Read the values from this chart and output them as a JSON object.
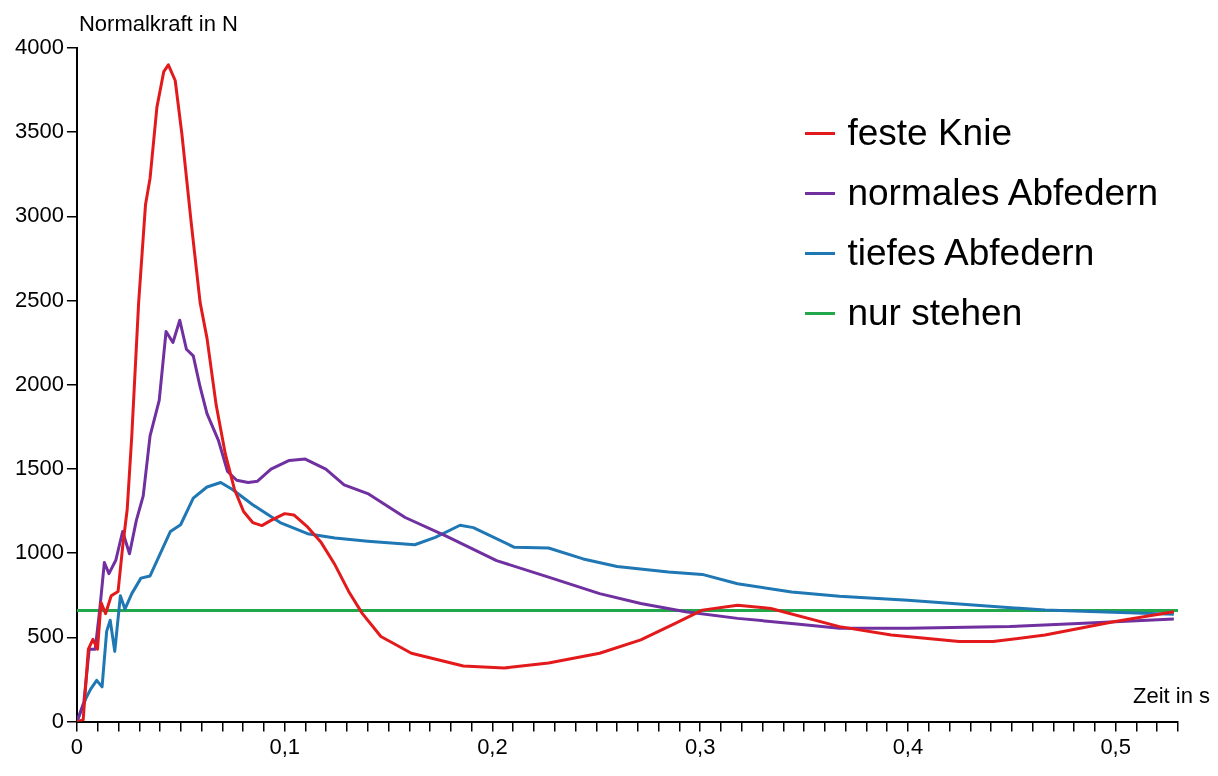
{
  "chart_data": {
    "type": "line",
    "xlabel": "Zeit in s",
    "ylabel": "Normalkraft in N",
    "xlim": [
      0,
      0.53
    ],
    "ylim": [
      0,
      4000
    ],
    "xticks": [
      0,
      {
        "value": 0.01,
        "label": null
      },
      {
        "value": 0.02,
        "label": null
      },
      {
        "value": 0.03,
        "label": null
      },
      {
        "value": 0.04,
        "label": null
      },
      {
        "value": 0.05,
        "label": null
      },
      {
        "value": 0.06,
        "label": null
      },
      {
        "value": 0.07,
        "label": null
      },
      {
        "value": 0.08,
        "label": null
      },
      {
        "value": 0.09,
        "label": null
      },
      {
        "value": 0.1,
        "label": "0,1"
      },
      {
        "value": 0.11,
        "label": null
      },
      {
        "value": 0.12,
        "label": null
      },
      {
        "value": 0.13,
        "label": null
      },
      {
        "value": 0.14,
        "label": null
      },
      {
        "value": 0.15,
        "label": null
      },
      {
        "value": 0.16,
        "label": null
      },
      {
        "value": 0.17,
        "label": null
      },
      {
        "value": 0.18,
        "label": null
      },
      {
        "value": 0.19,
        "label": null
      },
      {
        "value": 0.2,
        "label": "0,2"
      },
      {
        "value": 0.21,
        "label": null
      },
      {
        "value": 0.22,
        "label": null
      },
      {
        "value": 0.23,
        "label": null
      },
      {
        "value": 0.24,
        "label": null
      },
      {
        "value": 0.25,
        "label": null
      },
      {
        "value": 0.26,
        "label": null
      },
      {
        "value": 0.27,
        "label": null
      },
      {
        "value": 0.28,
        "label": null
      },
      {
        "value": 0.29,
        "label": null
      },
      {
        "value": 0.3,
        "label": "0,3"
      },
      {
        "value": 0.31,
        "label": null
      },
      {
        "value": 0.32,
        "label": null
      },
      {
        "value": 0.33,
        "label": null
      },
      {
        "value": 0.34,
        "label": null
      },
      {
        "value": 0.35,
        "label": null
      },
      {
        "value": 0.36,
        "label": null
      },
      {
        "value": 0.37,
        "label": null
      },
      {
        "value": 0.38,
        "label": null
      },
      {
        "value": 0.39,
        "label": null
      },
      {
        "value": 0.4,
        "label": "0,4"
      },
      {
        "value": 0.41,
        "label": null
      },
      {
        "value": 0.42,
        "label": null
      },
      {
        "value": 0.43,
        "label": null
      },
      {
        "value": 0.44,
        "label": null
      },
      {
        "value": 0.45,
        "label": null
      },
      {
        "value": 0.46,
        "label": null
      },
      {
        "value": 0.47,
        "label": null
      },
      {
        "value": 0.48,
        "label": null
      },
      {
        "value": 0.49,
        "label": null
      },
      {
        "value": 0.5,
        "label": "0,5"
      },
      {
        "value": 0.51,
        "label": null
      },
      {
        "value": 0.52,
        "label": null
      },
      {
        "value": 0.53,
        "label": null
      }
    ],
    "yticks": [
      0,
      500,
      1000,
      1500,
      2000,
      2500,
      3000,
      3500,
      4000
    ],
    "grid": false,
    "legend": "top right",
    "marker": "none",
    "line_style": "solid",
    "series": [
      {
        "name": "feste Knie",
        "color": "#e31a1c",
        "x": [
          0,
          0.003,
          0.0055,
          0.0077,
          0.0099,
          0.0116,
          0.0138,
          0.0165,
          0.0198,
          0.022,
          0.0242,
          0.0264,
          0.0297,
          0.033,
          0.0352,
          0.0385,
          0.0418,
          0.044,
          0.0473,
          0.0505,
          0.055,
          0.0593,
          0.0626,
          0.067,
          0.0714,
          0.0758,
          0.0802,
          0.0846,
          0.089,
          0.0934,
          0.1,
          0.1044,
          0.111,
          0.1176,
          0.1242,
          0.1308,
          0.1374,
          0.1463,
          0.161,
          0.186,
          0.2056,
          0.227,
          0.2516,
          0.2714,
          0.288,
          0.301,
          0.318,
          0.334,
          0.367,
          0.392,
          0.4246,
          0.441,
          0.466,
          0.499,
          0.528
        ],
        "values": [
          0,
          10,
          430,
          488,
          430,
          707,
          641,
          747,
          773,
          1037,
          1261,
          1697,
          2488,
          3069,
          3227,
          3649,
          3860,
          3900,
          3807,
          3491,
          2963,
          2488,
          2277,
          1881,
          1591,
          1380,
          1248,
          1182,
          1164,
          1195,
          1235,
          1227,
          1156,
          1063,
          931,
          773,
          641,
          505,
          406,
          330,
          318,
          348,
          406,
          485,
          583,
          662,
          691,
          672,
          564,
          514,
          475,
          475,
          514,
          593,
          652
        ]
      },
      {
        "name": "normales Abfedern",
        "color": "#7030a0",
        "x": [
          0,
          0.0033,
          0.0059,
          0.0088,
          0.011,
          0.0132,
          0.0154,
          0.0187,
          0.022,
          0.0253,
          0.0286,
          0.0319,
          0.0352,
          0.0396,
          0.0429,
          0.0462,
          0.0495,
          0.0527,
          0.056,
          0.0593,
          0.0626,
          0.0681,
          0.0725,
          0.0769,
          0.0824,
          0.0868,
          0.0934,
          0.1022,
          0.1099,
          0.1198,
          0.1286,
          0.14,
          0.158,
          0.1775,
          0.202,
          0.227,
          0.2516,
          0.2714,
          0.293,
          0.318,
          0.344,
          0.367,
          0.4,
          0.449,
          0.482,
          0.528
        ],
        "values": [
          0,
          113,
          430,
          430,
          668,
          945,
          879,
          958,
          1129,
          997,
          1195,
          1340,
          1697,
          1908,
          2317,
          2251,
          2383,
          2211,
          2172,
          1987,
          1829,
          1670,
          1485,
          1433,
          1420,
          1427,
          1499,
          1551,
          1559,
          1499,
          1406,
          1354,
          1212,
          1103,
          956,
          858,
          760,
          701,
          652,
          613,
          583,
          554,
          554,
          564,
          583,
          609
        ]
      },
      {
        "name": "tiefes Abfedern",
        "color": "#1f77b4",
        "x": [
          0,
          0.0044,
          0.0066,
          0.0095,
          0.0121,
          0.0143,
          0.016,
          0.0182,
          0.0209,
          0.0231,
          0.0264,
          0.0308,
          0.0352,
          0.0396,
          0.045,
          0.0499,
          0.056,
          0.0626,
          0.0692,
          0.0747,
          0.0846,
          0.0978,
          0.111,
          0.1242,
          0.14,
          0.1626,
          0.1725,
          0.1844,
          0.1908,
          0.2106,
          0.227,
          0.2437,
          0.26,
          0.2847,
          0.301,
          0.318,
          0.344,
          0.367,
          0.4,
          0.433,
          0.466,
          0.528
        ],
        "values": [
          0,
          140,
          193,
          245,
          206,
          536,
          602,
          417,
          747,
          668,
          760,
          852,
          865,
          984,
          1129,
          1169,
          1327,
          1393,
          1420,
          1380,
          1288,
          1182,
          1116,
          1090,
          1071,
          1050,
          1094,
          1166,
          1152,
          1035,
          1031,
          966,
          921,
          888,
          874,
          819,
          770,
          744,
          720,
          691,
          662,
          638
        ]
      },
      {
        "name": "nur stehen",
        "color": "#22a84a",
        "x": [
          0,
          0.53
        ],
        "values": [
          660,
          660
        ]
      }
    ]
  }
}
